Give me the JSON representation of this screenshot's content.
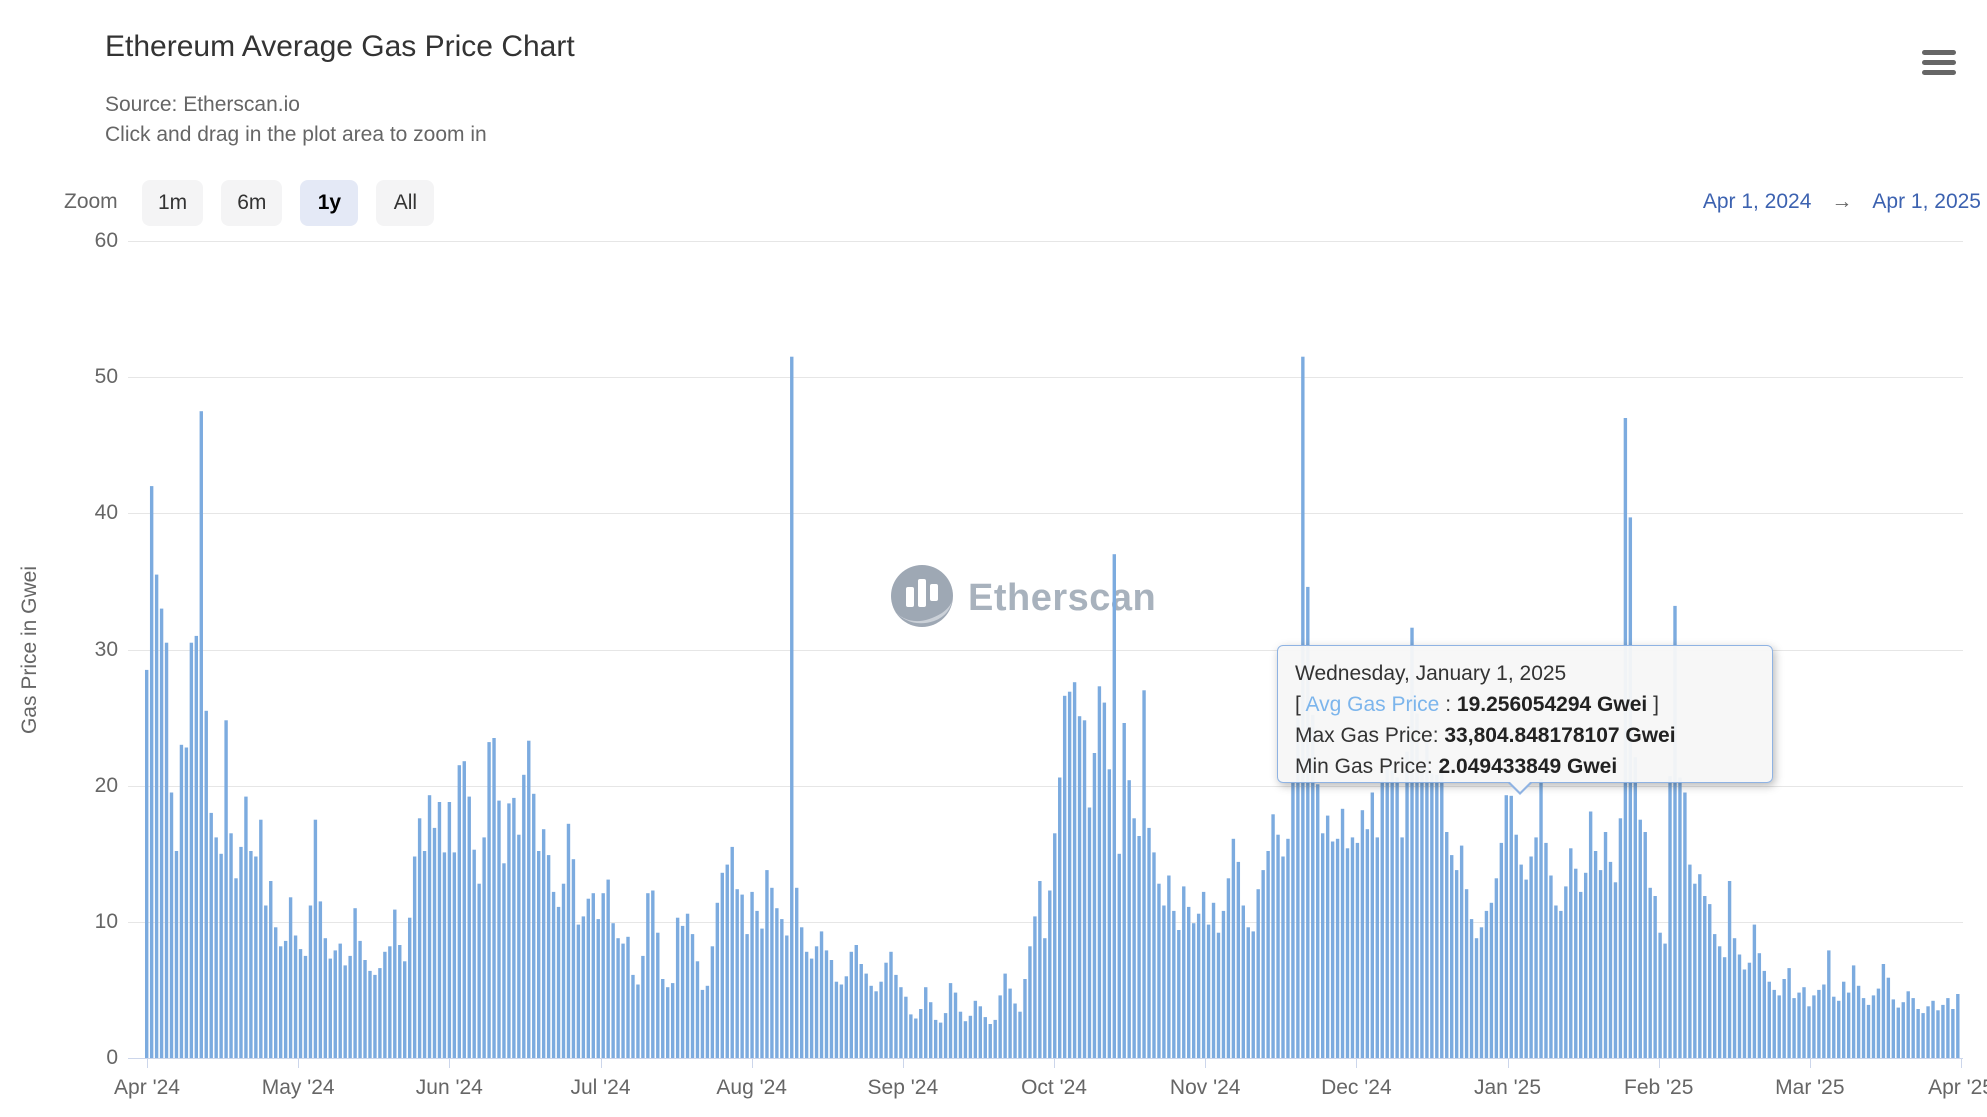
{
  "header": {
    "title": "Ethereum Average Gas Price Chart",
    "source_line": "Source: Etherscan.io",
    "hint_line": "Click and drag in the plot area to zoom in"
  },
  "toolbar": {
    "zoom_label": "Zoom",
    "buttons": [
      {
        "label": "1m",
        "active": false
      },
      {
        "label": "6m",
        "active": false
      },
      {
        "label": "1y",
        "active": true
      },
      {
        "label": "All",
        "active": false
      }
    ],
    "range_start": "Apr 1, 2024",
    "range_arrow": "→",
    "range_end": "Apr 1, 2025"
  },
  "watermark": {
    "text": "Etherscan"
  },
  "tooltip": {
    "date": "Wednesday, January 1, 2025",
    "bracket_open": "[",
    "avg_label": "Avg Gas Price",
    "avg_sep": " : ",
    "avg_value": "19.256054294 Gwei",
    "bracket_close": "]",
    "max_label": "Max Gas Price: ",
    "max_value": "33,804.848178107 Gwei",
    "min_label": "Min Gas Price: ",
    "min_value": "2.049433849 Gwei"
  },
  "colors": {
    "bar": "#7cabdf",
    "gridline": "#e6e6e6",
    "axis_line": "#ccd6eb",
    "tick_mark": "#ccd6eb",
    "date_link": "#3c62b0",
    "tooltip_avg": "#7cb5ec"
  },
  "chart_data": {
    "type": "bar",
    "title": "Ethereum Average Gas Price Chart",
    "subtitle": "Source: Etherscan.io",
    "ylabel": "Gas Price in Gwei",
    "xlabel": "",
    "ylim": [
      0,
      60
    ],
    "yticks": [
      0,
      10,
      20,
      30,
      40,
      50,
      60
    ],
    "grid": true,
    "legend": "none",
    "x_labels": [
      "Apr '24",
      "May '24",
      "Jun '24",
      "Jul '24",
      "Aug '24",
      "Sep '24",
      "Oct '24",
      "Nov '24",
      "Dec '24",
      "Jan '25",
      "Feb '25",
      "Mar '25",
      "Apr '25"
    ],
    "x_range": [
      "Apr 1, 2024",
      "Apr 1, 2025"
    ],
    "highlighted_point": {
      "date": "Wednesday, January 1, 2025",
      "avg_gwei": 19.256054294,
      "max_gwei": 33804.848178107,
      "min_gwei": 2.049433849
    },
    "series": [
      {
        "name": "Avg Gas Price",
        "unit": "Gwei",
        "interval": "daily",
        "start": "2024-04-01",
        "values": [
          28.5,
          42,
          35.5,
          33,
          30.5,
          19.5,
          15.2,
          23,
          22.8,
          30.5,
          31,
          47.5,
          25.5,
          18,
          16.2,
          15,
          24.8,
          16.5,
          13.2,
          15.5,
          19.2,
          15.2,
          14.8,
          17.5,
          11.2,
          13,
          9.6,
          8.2,
          8.6,
          11.8,
          9,
          8,
          7.5,
          11.2,
          17.5,
          11.5,
          8.8,
          7.3,
          7.9,
          8.4,
          6.8,
          7.5,
          11,
          8.6,
          7.2,
          6.4,
          6.1,
          6.6,
          7.8,
          8.2,
          10.9,
          8.3,
          7.1,
          10.3,
          14.8,
          17.6,
          15.2,
          19.3,
          16.9,
          18.8,
          15.1,
          18.8,
          15.1,
          21.5,
          21.8,
          19.2,
          15.3,
          12.8,
          16.2,
          23.2,
          23.5,
          18.9,
          14.3,
          18.7,
          19.1,
          16.4,
          20.8,
          23.3,
          19.4,
          15.2,
          16.8,
          14.9,
          12.2,
          11.1,
          12.8,
          17.2,
          14.6,
          9.8,
          10.4,
          11.7,
          12.1,
          10.2,
          12.1,
          13.1,
          9.9,
          8.8,
          8.4,
          8.9,
          6.1,
          5.4,
          7.5,
          12.1,
          12.3,
          9.2,
          5.8,
          5.2,
          5.5,
          10.3,
          9.7,
          10.6,
          9.1,
          7.1,
          5,
          5.3,
          8.2,
          11.4,
          13.6,
          14.2,
          15.5,
          12.4,
          12,
          9.1,
          12.2,
          10.8,
          9.5,
          13.8,
          12.5,
          11,
          10.2,
          9,
          51.5,
          12.5,
          9.6,
          7.8,
          7.3,
          8.2,
          9.3,
          7.9,
          7.2,
          5.6,
          5.4,
          6,
          7.8,
          8.3,
          6.9,
          6.2,
          5.3,
          4.9,
          5.6,
          7,
          7.8,
          6.1,
          5.2,
          4.5,
          3.2,
          2.9,
          3.6,
          5.2,
          4.1,
          2.8,
          2.6,
          3.3,
          5.5,
          4.8,
          3.4,
          2.7,
          3.1,
          4.2,
          3.8,
          3,
          2.5,
          2.8,
          4.6,
          6.2,
          5.1,
          4,
          3.4,
          5.8,
          8.2,
          10.4,
          13,
          8.8,
          12.3,
          16.5,
          20.6,
          26.6,
          26.9,
          27.6,
          25.1,
          24.8,
          18.4,
          22.4,
          27.3,
          26.1,
          21.2,
          37,
          15,
          24.6,
          20.4,
          17.6,
          16.3,
          27,
          16.9,
          15.1,
          12.8,
          11.2,
          13.4,
          10.8,
          9.4,
          12.6,
          11.1,
          9.9,
          10.6,
          12.2,
          9.8,
          11.4,
          9.2,
          10.8,
          13.2,
          16.1,
          14.4,
          11.2,
          9.6,
          9.3,
          12.4,
          13.8,
          15.2,
          17.9,
          16.4,
          14.8,
          16.1,
          20.3,
          25,
          51.5,
          34.6,
          25.2,
          20.1,
          16.5,
          17.8,
          15.9,
          16.1,
          18.3,
          15.4,
          16.2,
          15.8,
          18.2,
          16.8,
          19.5,
          16.2,
          20.4,
          22,
          21.1,
          20.6,
          16.2,
          22.5,
          31.6,
          25.3,
          21.7,
          23.4,
          20.9,
          20.8,
          21.2,
          16.6,
          14.9,
          13.8,
          15.6,
          12.4,
          10.2,
          8.8,
          9.6,
          10.8,
          11.4,
          13.2,
          15.8,
          19.3,
          19.256054294,
          16.4,
          14.2,
          13.1,
          14.8,
          16.2,
          20.5,
          15.8,
          13.4,
          11.2,
          10.8,
          12.6,
          15.4,
          13.9,
          12.2,
          13.6,
          18.1,
          15.2,
          13.8,
          16.6,
          14.4,
          12.9,
          17.6,
          47,
          39.7,
          22.1,
          17.5,
          16.6,
          12.5,
          11.9,
          9.2,
          8.4,
          20.7,
          33.2,
          20.6,
          19.5,
          14.2,
          12.8,
          13.5,
          11.9,
          11.3,
          9.1,
          8.2,
          7.4,
          13,
          8.8,
          7.6,
          6.5,
          7,
          9.8,
          7.7,
          6.4,
          5.6,
          5,
          4.6,
          5.8,
          6.6,
          4.4,
          4.8,
          5.2,
          3.8,
          4.6,
          5,
          5.4,
          7.9,
          4.5,
          4.2,
          5.6,
          4.8,
          6.8,
          5.3,
          4.4,
          3.9,
          4.6,
          5.1,
          6.9,
          5.9,
          4.3,
          3.7,
          4.1,
          4.9,
          4.4,
          3.6,
          3.3,
          3.8,
          4.2,
          3.5,
          3.9,
          4.4,
          3.6,
          4.7
        ]
      }
    ]
  }
}
